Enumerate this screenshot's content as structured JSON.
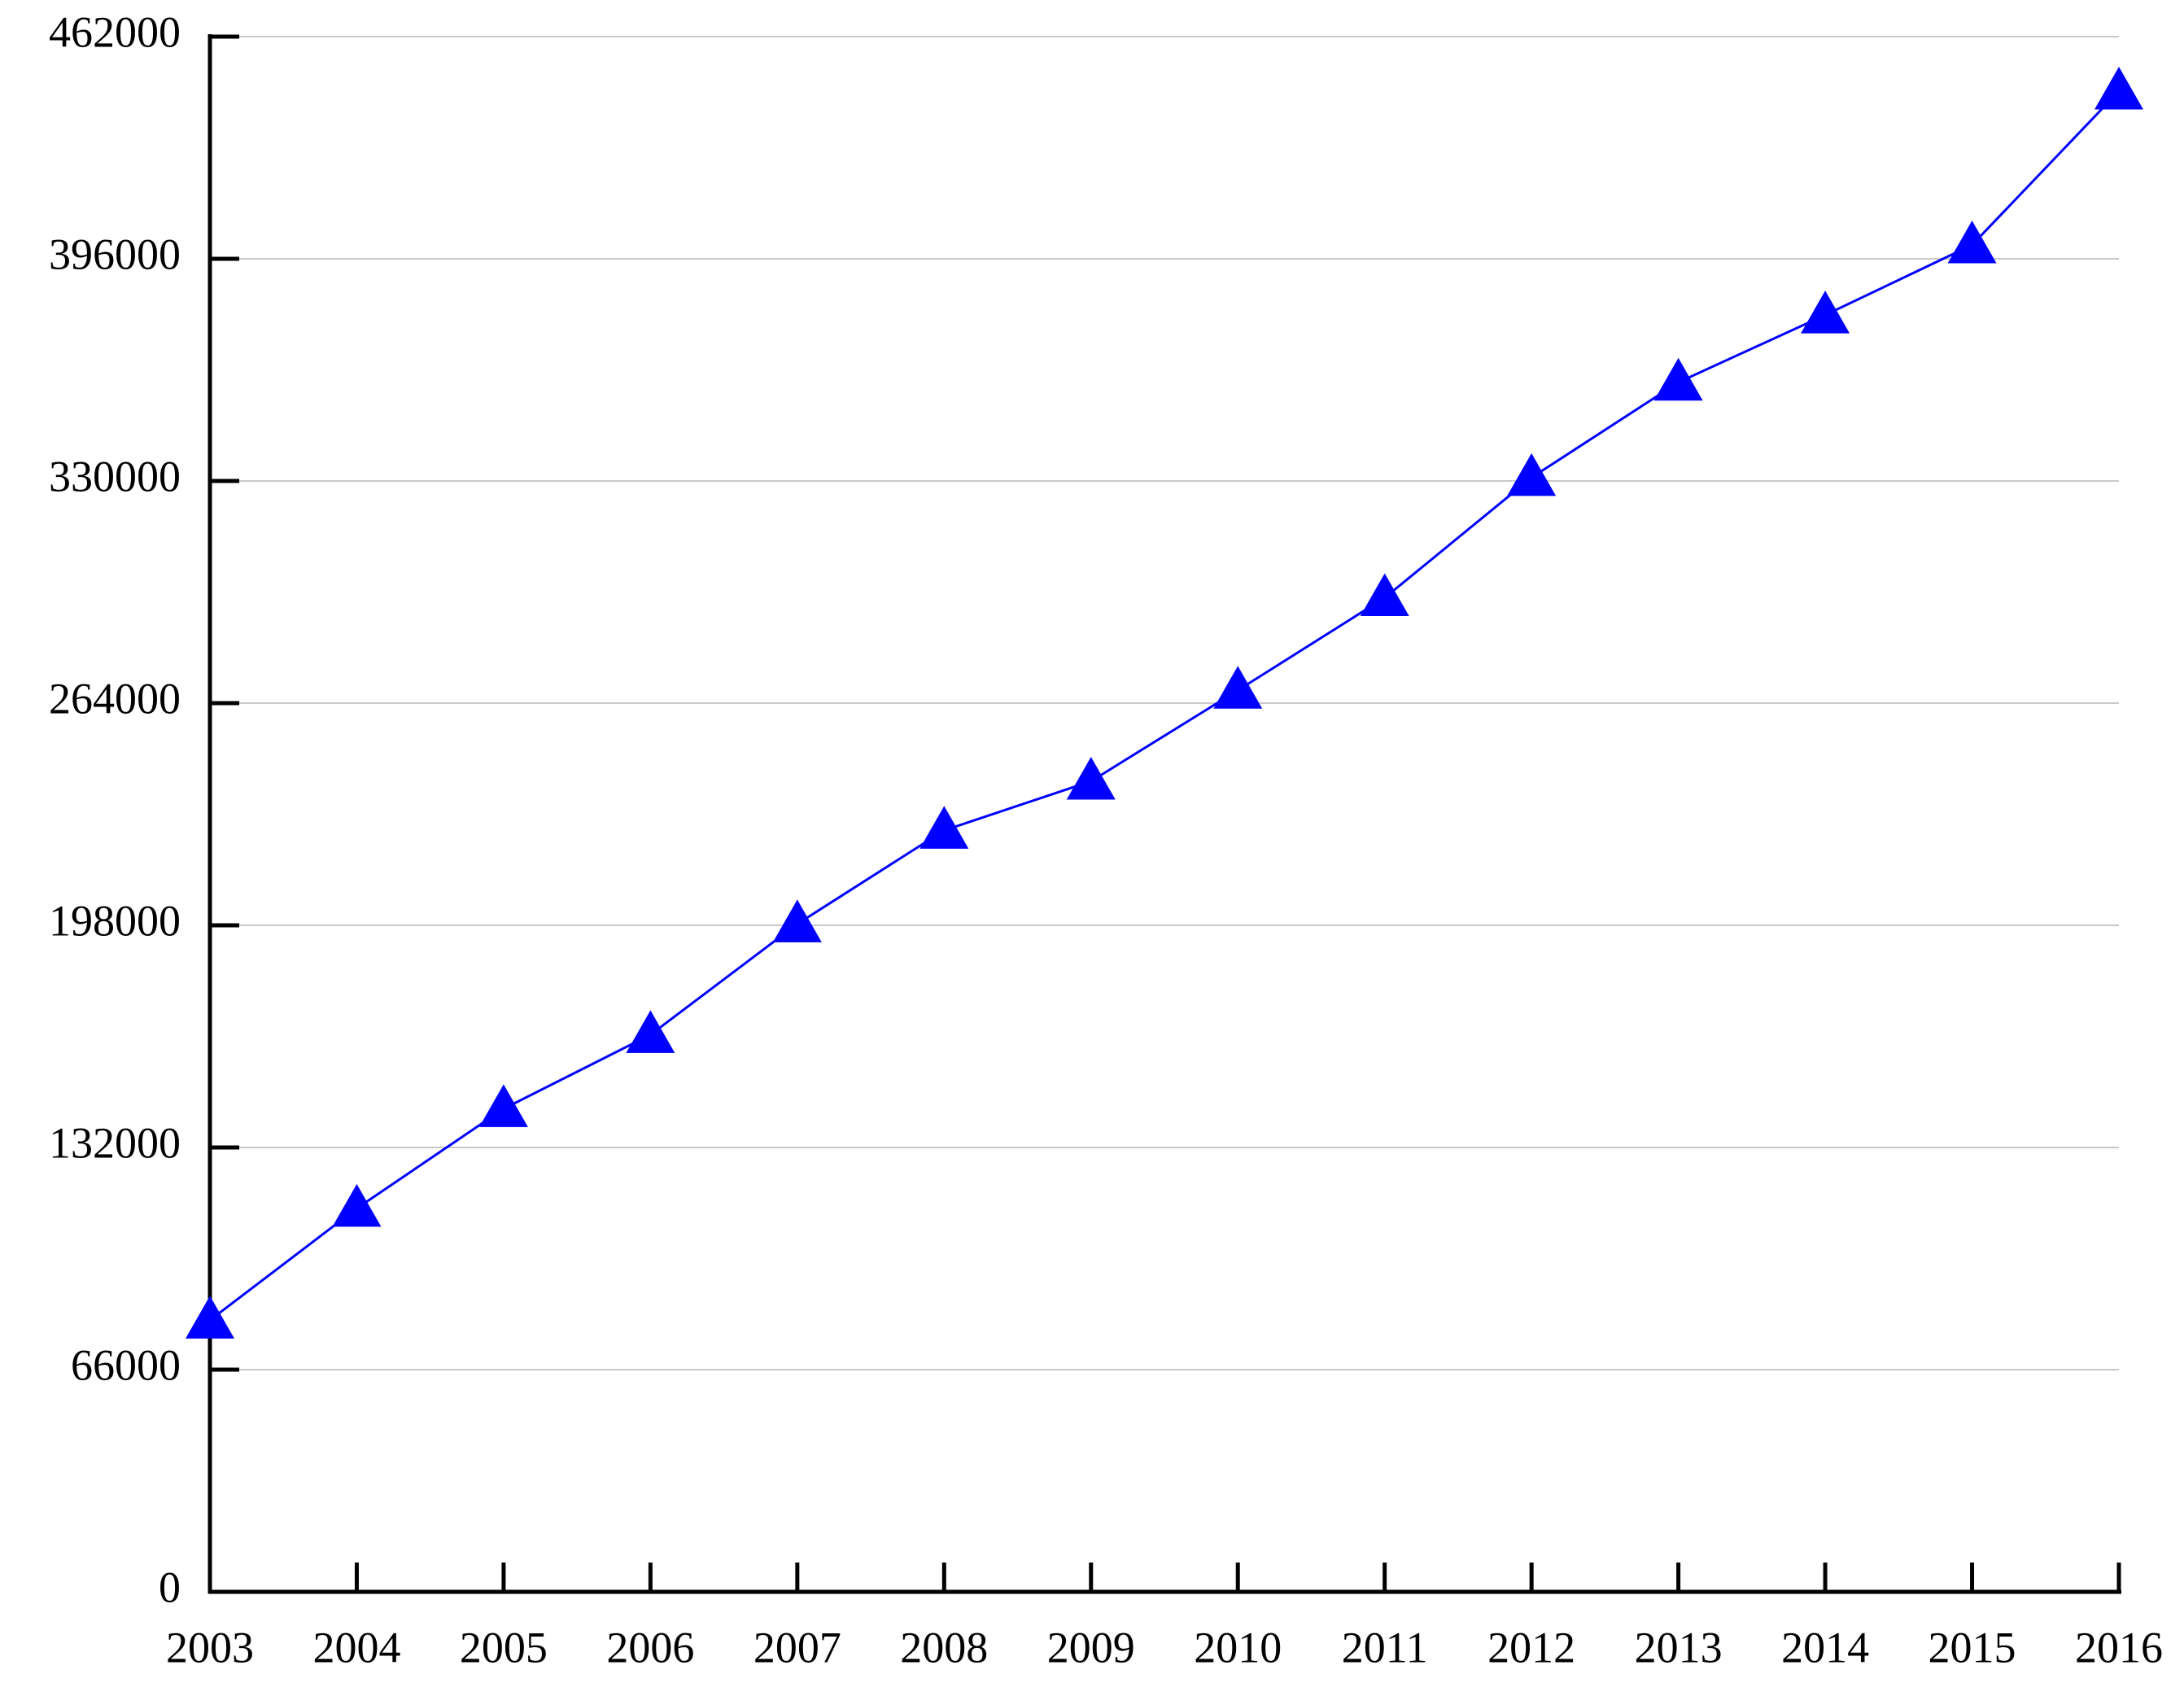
{
  "chart_data": {
    "type": "line",
    "categories": [
      "2003",
      "2004",
      "2005",
      "2006",
      "2007",
      "2008",
      "2009",
      "2010",
      "2011",
      "2012",
      "2013",
      "2014",
      "2015",
      "2016"
    ],
    "values": [
      80700,
      113900,
      143500,
      165500,
      198400,
      226200,
      240800,
      267800,
      295300,
      331000,
      359300,
      379300,
      400100,
      445800
    ],
    "color": "#0000ff",
    "ylim": [
      0,
      462000
    ],
    "yticks": [
      0,
      66000,
      132000,
      198000,
      264000,
      330000,
      396000,
      462000
    ],
    "grid": true,
    "marker": "triangle"
  }
}
